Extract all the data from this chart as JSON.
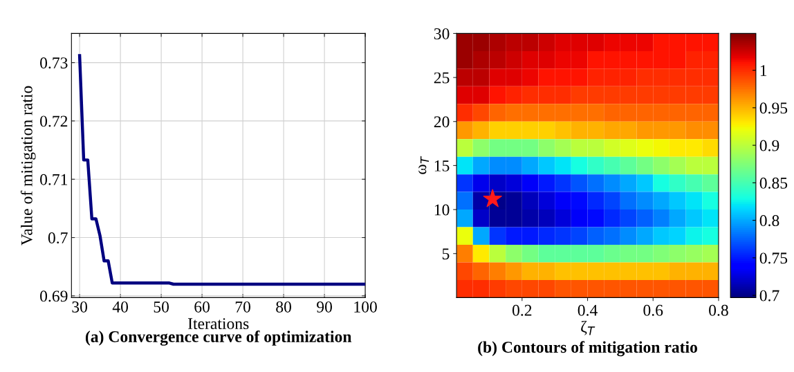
{
  "chart_data": [
    {
      "type": "line",
      "title": "(a) Convergence curve of optimization",
      "xlabel": "Iterations",
      "ylabel": "Value of mitigation ratio",
      "x": [
        30,
        31,
        32,
        33,
        34,
        35,
        36,
        37,
        38,
        52,
        53,
        100
      ],
      "series": [
        {
          "color": "#000080",
          "values": [
            0.7312,
            0.7133,
            0.7133,
            0.7032,
            0.7032,
            0.7003,
            0.696,
            0.696,
            0.6922,
            0.6922,
            0.692,
            0.692
          ]
        }
      ],
      "xlim": [
        28,
        100
      ],
      "xticks": [
        30,
        40,
        50,
        60,
        70,
        80,
        90,
        100
      ],
      "ylim": [
        0.6897,
        0.735
      ],
      "yticks": [
        0.69,
        0.7,
        0.71,
        0.72,
        0.73
      ],
      "grid": true,
      "marker": "none",
      "line_style": "solid"
    },
    {
      "type": "heatmap",
      "title": "(b) Contours of mitigation ratio",
      "xlabel": "ζ$_{T}$",
      "ylabel": "ω$_{T}$",
      "xlim": [
        0,
        0.8
      ],
      "xticks": [
        0.2,
        0.4,
        0.6,
        0.8
      ],
      "ylim": [
        0,
        30
      ],
      "yticks": [
        5,
        10,
        15,
        20,
        25,
        30
      ],
      "clim": [
        0.697,
        1.049
      ],
      "cticks": [
        0.7,
        0.75,
        0.8,
        0.85,
        0.9,
        0.95,
        1
      ],
      "cells": [
        [
          1.04,
          1.04,
          1.035,
          1.03,
          1.03,
          1.025,
          1.02,
          1.02,
          1.02,
          1.015,
          1.015,
          1.015,
          1.01,
          1.01,
          1.01,
          1.01
        ],
        [
          1.04,
          1.035,
          1.03,
          1.025,
          1.02,
          1.02,
          1.015,
          1.015,
          1.01,
          1.01,
          1.01,
          1.01,
          1.01,
          1.01,
          1.005,
          1.005
        ],
        [
          1.03,
          1.03,
          1.02,
          1.02,
          1.015,
          1.01,
          1.01,
          1.01,
          1.005,
          1.005,
          1.005,
          1.0,
          1.0,
          1.0,
          1.0,
          1.0
        ],
        [
          1.02,
          1.02,
          1.01,
          1.005,
          1.0,
          1.0,
          1.0,
          0.995,
          0.995,
          0.995,
          0.995,
          0.995,
          0.995,
          0.995,
          0.995,
          0.995
        ],
        [
          1.0,
          0.99,
          0.98,
          0.975,
          0.975,
          0.975,
          0.975,
          0.975,
          0.975,
          0.98,
          0.98,
          0.98,
          0.98,
          0.98,
          0.98,
          0.98
        ],
        [
          0.96,
          0.95,
          0.94,
          0.94,
          0.94,
          0.94,
          0.945,
          0.95,
          0.95,
          0.955,
          0.955,
          0.96,
          0.96,
          0.96,
          0.965,
          0.965
        ],
        [
          0.9,
          0.88,
          0.87,
          0.87,
          0.87,
          0.88,
          0.89,
          0.9,
          0.9,
          0.91,
          0.915,
          0.92,
          0.925,
          0.93,
          0.93,
          0.935
        ],
        [
          0.82,
          0.8,
          0.79,
          0.79,
          0.8,
          0.81,
          0.82,
          0.83,
          0.84,
          0.85,
          0.86,
          0.87,
          0.88,
          0.89,
          0.9,
          0.9
        ],
        [
          0.76,
          0.73,
          0.72,
          0.725,
          0.735,
          0.75,
          0.76,
          0.77,
          0.78,
          0.79,
          0.8,
          0.81,
          0.83,
          0.84,
          0.85,
          0.86
        ],
        [
          0.78,
          0.71,
          0.7,
          0.705,
          0.715,
          0.725,
          0.735,
          0.745,
          0.755,
          0.765,
          0.78,
          0.79,
          0.8,
          0.81,
          0.82,
          0.83
        ],
        [
          0.8,
          0.72,
          0.705,
          0.705,
          0.71,
          0.715,
          0.725,
          0.735,
          0.745,
          0.755,
          0.765,
          0.775,
          0.785,
          0.8,
          0.81,
          0.82
        ],
        [
          0.92,
          0.8,
          0.76,
          0.75,
          0.75,
          0.755,
          0.76,
          0.765,
          0.775,
          0.78,
          0.79,
          0.8,
          0.81,
          0.815,
          0.825,
          0.83
        ],
        [
          0.97,
          0.93,
          0.9,
          0.88,
          0.87,
          0.86,
          0.86,
          0.86,
          0.86,
          0.865,
          0.87,
          0.87,
          0.875,
          0.88,
          0.885,
          0.89
        ],
        [
          0.99,
          0.98,
          0.97,
          0.96,
          0.95,
          0.95,
          0.945,
          0.945,
          0.945,
          0.945,
          0.945,
          0.945,
          0.945,
          0.95,
          0.95,
          0.95
        ],
        [
          1.0,
          1.0,
          0.995,
          0.99,
          0.99,
          0.99,
          0.985,
          0.985,
          0.985,
          0.985,
          0.985,
          0.985,
          0.985,
          0.985,
          0.985,
          0.985
        ]
      ],
      "series": [
        {
          "type": "scatter",
          "x": [
            0.11
          ],
          "values": [
            11.2
          ],
          "color": "#ff1a1a",
          "marker": "star"
        }
      ]
    }
  ]
}
